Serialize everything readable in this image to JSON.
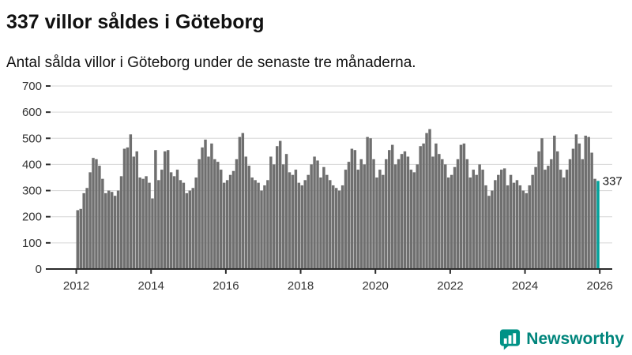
{
  "header": {
    "title": "337 villor såldes i Göteborg",
    "subtitle": "Antal sålda villor i Göteborg under de senaste tre månaderna."
  },
  "chart_data": {
    "type": "bar",
    "x_start": 2012,
    "frequency": "monthly",
    "values": [
      225,
      230,
      290,
      310,
      370,
      425,
      420,
      395,
      345,
      290,
      300,
      295,
      280,
      300,
      355,
      460,
      465,
      515,
      430,
      450,
      350,
      345,
      355,
      330,
      270,
      455,
      340,
      380,
      450,
      455,
      370,
      355,
      380,
      340,
      330,
      290,
      300,
      310,
      350,
      420,
      465,
      495,
      430,
      480,
      420,
      410,
      380,
      330,
      340,
      360,
      375,
      420,
      505,
      520,
      430,
      395,
      350,
      340,
      330,
      300,
      320,
      340,
      430,
      400,
      470,
      490,
      400,
      440,
      370,
      360,
      380,
      330,
      320,
      340,
      360,
      400,
      430,
      415,
      350,
      390,
      360,
      340,
      320,
      310,
      300,
      320,
      380,
      410,
      460,
      455,
      380,
      420,
      400,
      505,
      500,
      420,
      350,
      380,
      360,
      420,
      455,
      475,
      400,
      420,
      440,
      450,
      430,
      380,
      370,
      400,
      470,
      480,
      520,
      535,
      430,
      480,
      440,
      420,
      400,
      350,
      360,
      390,
      420,
      475,
      480,
      420,
      350,
      380,
      360,
      400,
      380,
      320,
      280,
      300,
      340,
      360,
      380,
      385,
      320,
      360,
      330,
      340,
      320,
      300,
      290,
      320,
      360,
      390,
      450,
      500,
      380,
      395,
      420,
      510,
      450,
      380,
      350,
      380,
      420,
      460,
      515,
      480,
      420,
      510,
      505,
      445,
      345,
      337
    ],
    "last_value_label": "337",
    "highlight_last": true,
    "ylim": [
      0,
      700
    ],
    "yticks": [
      0,
      100,
      200,
      300,
      400,
      500,
      600,
      700
    ],
    "xticks": [
      2012,
      2014,
      2016,
      2018,
      2020,
      2022,
      2024,
      2026
    ],
    "grid": true,
    "legend": "none",
    "bar_color": "#6f6f6f",
    "highlight_color": "#00a29b",
    "grid_color": "#d6d6d6",
    "axis_color": "#2b2b2b",
    "tick_label_color": "#333333"
  },
  "footer": {
    "brand": "Newsworthy",
    "brand_color": "#00857c",
    "logo_color": "#009286"
  }
}
